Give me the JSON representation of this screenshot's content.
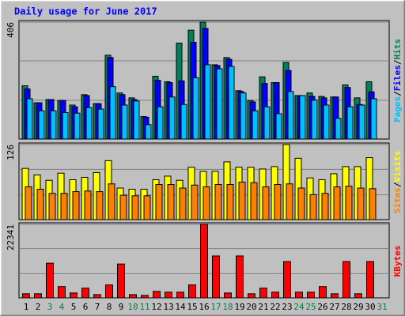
{
  "chart_data": [
    {
      "type": "bar",
      "title": "Daily usage for June 2017",
      "categories": [
        "1",
        "2",
        "3",
        "4",
        "5",
        "6",
        "7",
        "8",
        "9",
        "10",
        "11",
        "12",
        "13",
        "14",
        "15",
        "16",
        "17",
        "18",
        "19",
        "20",
        "21",
        "22",
        "23",
        "24",
        "25",
        "26",
        "27",
        "28",
        "29",
        "30",
        "31"
      ],
      "category_colors": [
        "#000000",
        "#000000",
        "#008040",
        "#008040",
        "#000000",
        "#000000",
        "#000000",
        "#000000",
        "#000000",
        "#008040",
        "#008040",
        "#000000",
        "#000000",
        "#000000",
        "#000000",
        "#000000",
        "#008040",
        "#008040",
        "#000000",
        "#000000",
        "#000000",
        "#000000",
        "#000000",
        "#008040",
        "#008040",
        "#000000",
        "#000000",
        "#000000",
        "#000000",
        "#000000",
        "#008040"
      ],
      "legend_separator": "/",
      "series": [
        {
          "name": "Hits",
          "color": "#00805c",
          "values": [
            185,
            126,
            137,
            134,
            118,
            154,
            123,
            291,
            160,
            143,
            78,
            218,
            199,
            333,
            378,
            406,
            258,
            283,
            168,
            134,
            216,
            196,
            266,
            151,
            160,
            148,
            146,
            188,
            143,
            199,
            0
          ]
        },
        {
          "name": "Files",
          "color": "#0000ff",
          "values": [
            174,
            126,
            137,
            134,
            112,
            151,
            123,
            283,
            154,
            137,
            76,
            204,
            196,
            202,
            336,
            384,
            255,
            277,
            165,
            129,
            193,
            196,
            238,
            151,
            148,
            143,
            146,
            179,
            120,
            164,
            0
          ]
        },
        {
          "name": "Pages",
          "color": "#00c0ff",
          "values": [
            140,
            98,
            98,
            92,
            90,
            109,
            104,
            182,
            118,
            132,
            50,
            112,
            146,
            120,
            213,
            258,
            244,
            252,
            160,
            98,
            112,
            88,
            165,
            151,
            135,
            118,
            72,
            112,
            118,
            140,
            0
          ]
        }
      ],
      "ylim": [
        0,
        406
      ],
      "yticks": [
        406
      ],
      "grid_divisions": 3
    },
    {
      "type": "bar",
      "series": [
        {
          "name": "Visits",
          "color": "#ffff00",
          "values": [
            86,
            75,
            66,
            78,
            67,
            71,
            79,
            99,
            53,
            51,
            51,
            67,
            73,
            66,
            88,
            81,
            81,
            97,
            88,
            88,
            85,
            89,
            126,
            103,
            70,
            67,
            77,
            89,
            89,
            104,
            0
          ]
        },
        {
          "name": "Sites",
          "color": "#ff8000",
          "values": [
            55,
            51,
            44,
            44,
            47,
            48,
            47,
            60,
            41,
            40,
            40,
            59,
            59,
            53,
            58,
            55,
            59,
            59,
            63,
            62,
            55,
            59,
            60,
            53,
            42,
            44,
            55,
            56,
            53,
            52,
            0
          ]
        }
      ],
      "ylim": [
        0,
        126
      ],
      "yticks": [
        126
      ],
      "grid_divisions": 3
    },
    {
      "type": "bar",
      "series": [
        {
          "name": "KBytes",
          "color": "#ff0000",
          "values": [
            1230,
            1230,
            10540,
            3430,
            1470,
            2940,
            980,
            3920,
            10290,
            980,
            740,
            1960,
            1720,
            1720,
            3920,
            22341,
            12740,
            1470,
            12740,
            1230,
            2940,
            1720,
            11030,
            1720,
            1720,
            3430,
            1230,
            11030,
            1230,
            11030,
            0
          ]
        }
      ],
      "ylim": [
        0,
        22341
      ],
      "yticks": [
        22341
      ],
      "grid_divisions": 3
    }
  ]
}
